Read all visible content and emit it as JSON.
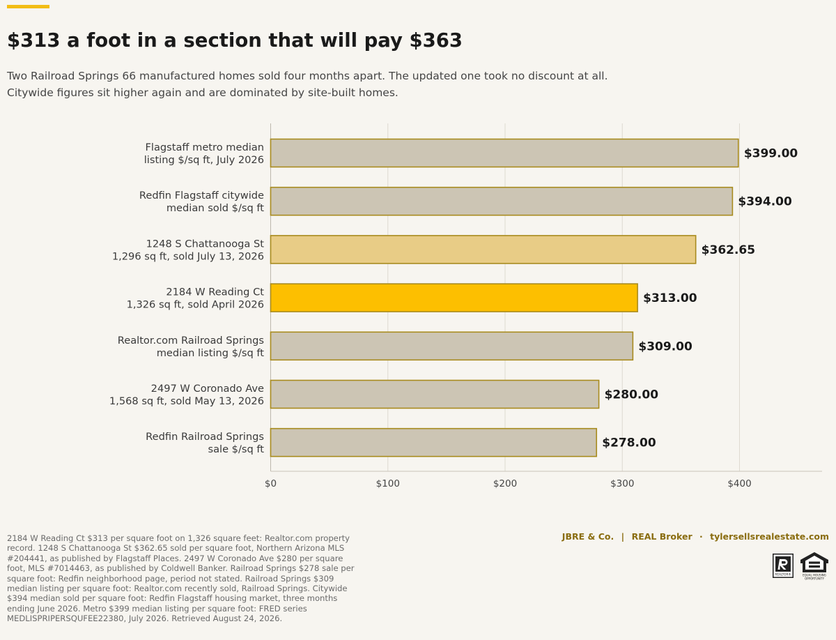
{
  "header": {
    "title": "$313 a foot in a section that will pay $363",
    "subtitle_line1": "Two Railroad Springs 66 manufactured homes sold four months apart. The updated one took no discount at all.",
    "subtitle_line2": "Citywide figures sit higher again and are dominated by site-built homes."
  },
  "colors": {
    "accent": "#f2bd15",
    "bar_neutral": "#ccc5b4",
    "bar_comp": "#e8cc86",
    "bar_subject": "#fdbf00",
    "bar_outline": "#a88b1e",
    "credit": "#8a6d10"
  },
  "chart_data": {
    "type": "bar",
    "orientation": "horizontal",
    "categories": [
      [
        "Flagstaff metro median",
        "listing $/sq ft, July 2026"
      ],
      [
        "Redfin Flagstaff citywide",
        "median sold $/sq ft"
      ],
      [
        "1248 S Chattanooga St",
        "1,296 sq ft, sold July 13, 2026"
      ],
      [
        "2184 W Reading Ct",
        "1,326 sq ft, sold April 2026"
      ],
      [
        "Realtor.com Railroad Springs",
        "median listing $/sq ft"
      ],
      [
        "2497 W Coronado Ave",
        "1,568 sq ft, sold May 13, 2026"
      ],
      [
        "Redfin Railroad Springs",
        "sale $/sq ft"
      ]
    ],
    "values": [
      399.0,
      394.0,
      362.65,
      313.0,
      309.0,
      280.0,
      278.0
    ],
    "value_labels": [
      "$399.00",
      "$394.00",
      "$362.65",
      "$313.00",
      "$309.00",
      "$280.00",
      "$278.00"
    ],
    "bar_roles": [
      "neutral",
      "neutral",
      "comp",
      "subject",
      "neutral",
      "neutral",
      "neutral"
    ],
    "xlim": [
      0,
      470
    ],
    "xticks": [
      0,
      100,
      200,
      300,
      400
    ],
    "xtick_labels": [
      "$0",
      "$100",
      "$200",
      "$300",
      "$400"
    ],
    "grid": "vertical",
    "xlabel": "",
    "ylabel": ""
  },
  "footer": {
    "source_note": "2184 W Reading Ct $313 per square foot on 1,326 square feet: Realtor.com property record. 1248 S Chattanooga St $362.65 sold per square foot, Northern Arizona MLS #204441, as published by Flagstaff Places. 2497 W Coronado Ave $280 per square foot, MLS #7014463, as published by Coldwell Banker. Railroad Springs $278 sale per square foot: Redfin neighborhood page, period not stated. Railroad Springs $309 median listing per square foot: Realtor.com recently sold, Railroad Springs. Citywide $394 median sold per square foot: Redfin Flagstaff housing market, three months ending June 2026. Metro $399 median listing per square foot: FRED series MEDLISPRIPERSQUFEE22380, July 2026. Retrieved August 24, 2026.",
    "brokerage": "JBRE & Co.",
    "separator": "|",
    "broker": "REAL Broker",
    "dot": "·",
    "website": "tylersellsrealestate.com",
    "realtor_logo_text": "REALTOR®",
    "eho_logo_text_1": "EQUAL HOUSING",
    "eho_logo_text_2": "OPPORTUNITY"
  }
}
